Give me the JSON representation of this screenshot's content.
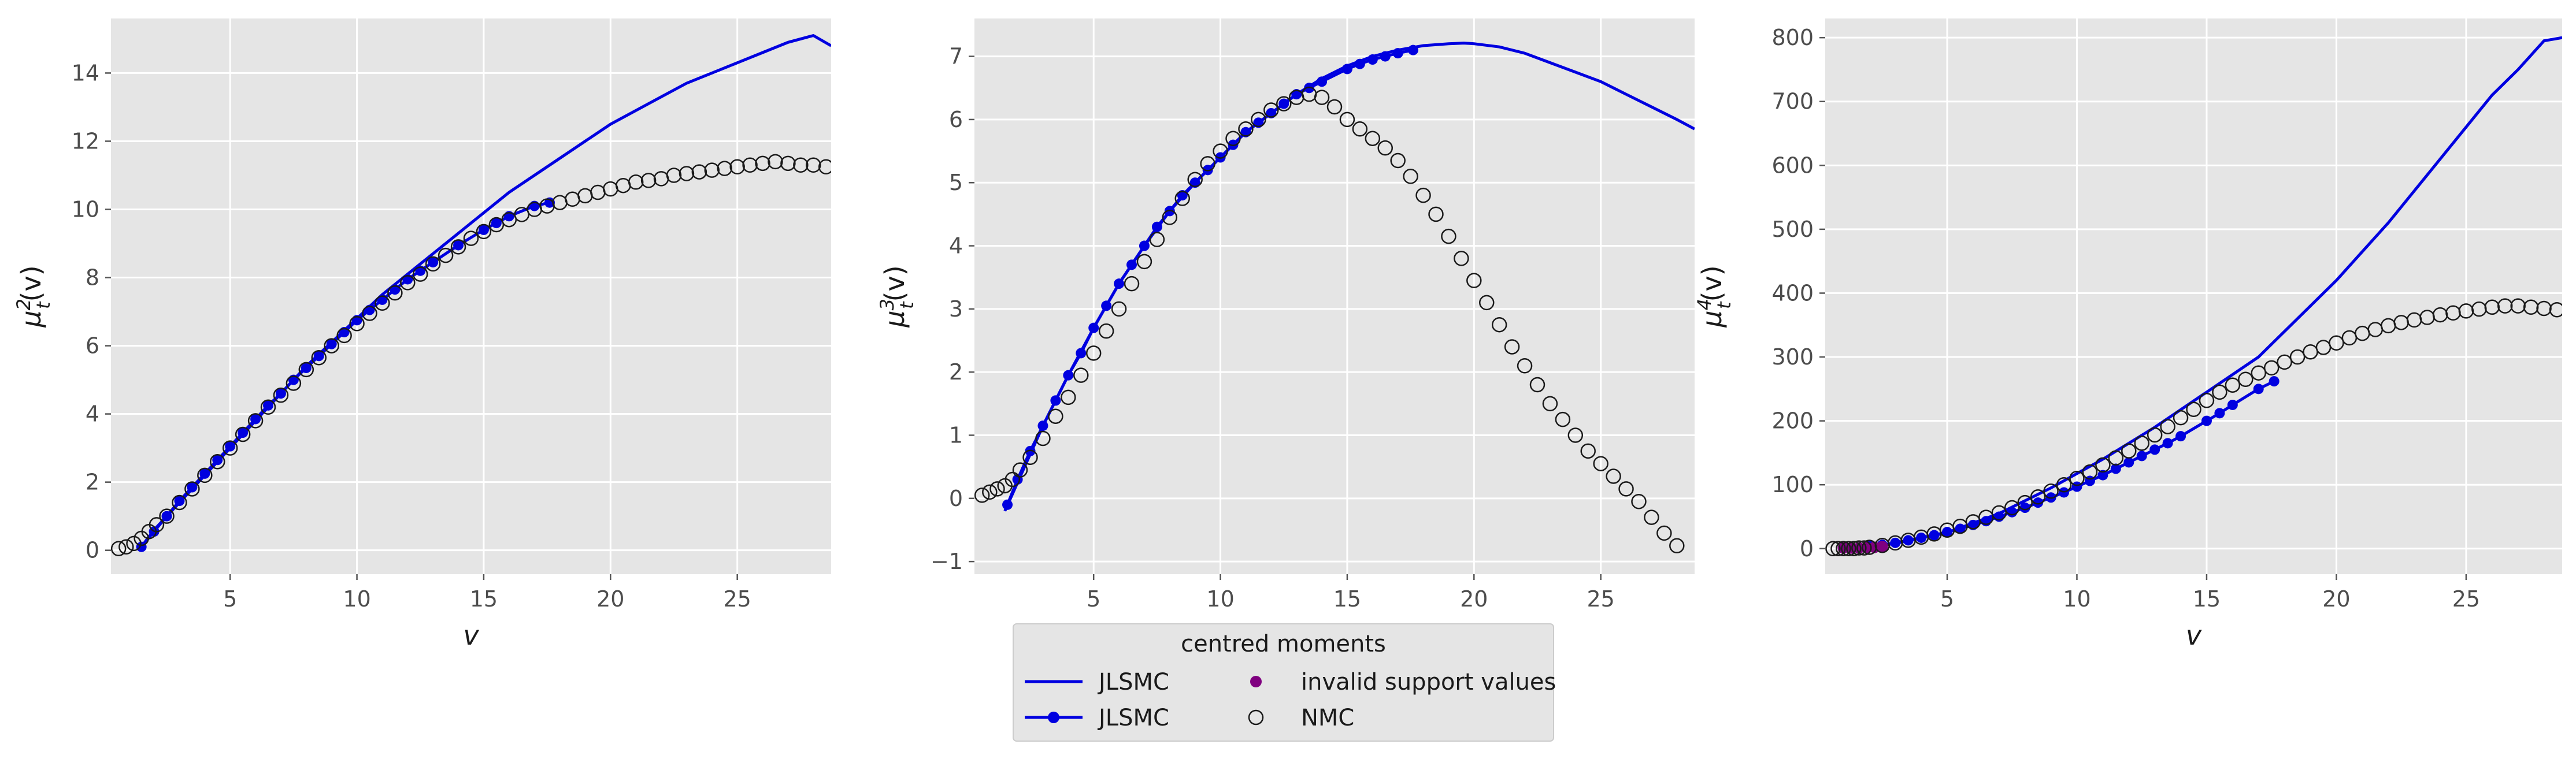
{
  "chart_data": [
    {
      "type": "scatter",
      "panel": 1,
      "xlabel": "v",
      "ylabel": "μ_t^2(v)",
      "ylabel_parts": {
        "base": "μ",
        "sup": "2",
        "sub": "t",
        "tail": "(v)"
      },
      "xlim": [
        0.3,
        28.7
      ],
      "ylim": [
        -0.7,
        15.6
      ],
      "xticks": [
        "5",
        "10",
        "15",
        "20",
        "25"
      ],
      "xtick_values": [
        5,
        10,
        15,
        20,
        25
      ],
      "yticks": [
        "0",
        "2",
        "4",
        "6",
        "8",
        "10",
        "12",
        "14"
      ],
      "ytick_values": [
        0,
        2,
        4,
        6,
        8,
        10,
        12,
        14
      ],
      "grid": true,
      "series": [
        {
          "name": "JLSMC",
          "kind": "line",
          "color": "#0000e0",
          "x": [
            1.5,
            2,
            3,
            4,
            5,
            6,
            7,
            8,
            9,
            10,
            11,
            12,
            13,
            14,
            15,
            16,
            17,
            18,
            19,
            20,
            21,
            22,
            23,
            24,
            25,
            26,
            27,
            28,
            28.7
          ],
          "y": [
            0.1,
            0.6,
            1.4,
            2.2,
            3.0,
            3.8,
            4.6,
            5.4,
            6.1,
            6.8,
            7.5,
            8.1,
            8.7,
            9.3,
            9.9,
            10.5,
            11.0,
            11.5,
            12.0,
            12.5,
            12.9,
            13.3,
            13.7,
            14.0,
            14.3,
            14.6,
            14.9,
            15.1,
            14.8
          ]
        },
        {
          "name": "JLSMC",
          "kind": "line+markers",
          "color": "#0000e0",
          "x": [
            1.5,
            2,
            2.5,
            3,
            3.5,
            4,
            4.5,
            5,
            5.5,
            6,
            6.5,
            7,
            7.5,
            8,
            8.5,
            9,
            9.5,
            10,
            10.5,
            11,
            11.5,
            12,
            12.5,
            13,
            14,
            15,
            15.5,
            16,
            17,
            17.6
          ],
          "y": [
            0.1,
            0.55,
            1.0,
            1.45,
            1.85,
            2.25,
            2.65,
            3.05,
            3.45,
            3.85,
            4.25,
            4.6,
            5.0,
            5.35,
            5.7,
            6.05,
            6.4,
            6.75,
            7.05,
            7.35,
            7.65,
            7.95,
            8.2,
            8.45,
            8.95,
            9.4,
            9.6,
            9.8,
            10.1,
            10.2
          ]
        },
        {
          "name": "NMC",
          "kind": "scatter-open",
          "color": "#1a1a1a",
          "x": [
            0.6,
            0.9,
            1.2,
            1.5,
            1.8,
            2.1,
            2.5,
            3,
            3.5,
            4,
            4.5,
            5,
            5.5,
            6,
            6.5,
            7,
            7.5,
            8,
            8.5,
            9,
            9.5,
            10,
            10.5,
            11,
            11.5,
            12,
            12.5,
            13,
            13.5,
            14,
            14.5,
            15,
            15.5,
            16,
            16.5,
            17,
            17.5,
            18,
            18.5,
            19,
            19.5,
            20,
            20.5,
            21,
            21.5,
            22,
            22.5,
            23,
            23.5,
            24,
            24.5,
            25,
            25.5,
            26,
            26.5,
            27,
            27.5,
            28,
            28.5
          ],
          "y": [
            0.05,
            0.1,
            0.2,
            0.35,
            0.55,
            0.75,
            1.0,
            1.4,
            1.8,
            2.2,
            2.6,
            3.0,
            3.4,
            3.8,
            4.2,
            4.55,
            4.9,
            5.3,
            5.65,
            6.0,
            6.3,
            6.65,
            6.95,
            7.25,
            7.55,
            7.85,
            8.1,
            8.4,
            8.65,
            8.9,
            9.15,
            9.35,
            9.55,
            9.7,
            9.85,
            10.0,
            10.1,
            10.2,
            10.3,
            10.4,
            10.5,
            10.6,
            10.7,
            10.8,
            10.85,
            10.9,
            11.0,
            11.05,
            11.1,
            11.15,
            11.2,
            11.25,
            11.3,
            11.35,
            11.4,
            11.35,
            11.3,
            11.3,
            11.25
          ]
        }
      ]
    },
    {
      "type": "scatter",
      "panel": 2,
      "xlabel": "v",
      "ylabel": "μ_t^3(v)",
      "ylabel_parts": {
        "base": "μ",
        "sup": "3",
        "sub": "t",
        "tail": "(v)"
      },
      "xlim": [
        0.3,
        28.7
      ],
      "ylim": [
        -1.2,
        7.6
      ],
      "xticks": [
        "5",
        "10",
        "15",
        "20",
        "25"
      ],
      "xtick_values": [
        5,
        10,
        15,
        20,
        25
      ],
      "yticks": [
        "−1",
        "0",
        "1",
        "2",
        "3",
        "4",
        "5",
        "6",
        "7"
      ],
      "ytick_values": [
        -1,
        0,
        1,
        2,
        3,
        4,
        5,
        6,
        7
      ],
      "grid": true,
      "series": [
        {
          "name": "JLSMC",
          "kind": "line",
          "color": "#0000e0",
          "x": [
            1.5,
            2,
            2.5,
            3,
            3.5,
            4,
            5,
            6,
            7,
            8,
            9,
            10,
            11,
            12,
            13,
            14,
            15,
            16,
            17,
            18,
            19,
            19.6,
            20,
            21,
            22,
            23,
            24,
            25,
            26,
            27,
            28,
            28.7
          ],
          "y": [
            -0.2,
            0.25,
            0.7,
            1.15,
            1.55,
            1.95,
            2.7,
            3.4,
            4.0,
            4.55,
            5.0,
            5.4,
            5.8,
            6.1,
            6.4,
            6.65,
            6.85,
            7.0,
            7.1,
            7.17,
            7.2,
            7.21,
            7.2,
            7.15,
            7.05,
            6.9,
            6.75,
            6.6,
            6.4,
            6.2,
            6.0,
            5.85
          ]
        },
        {
          "name": "JLSMC",
          "kind": "line+markers",
          "color": "#0000e0",
          "x": [
            1.6,
            2,
            2.5,
            3,
            3.5,
            4,
            4.5,
            5,
            5.5,
            6,
            6.5,
            7,
            7.5,
            8,
            8.5,
            9,
            9.5,
            10,
            10.5,
            11,
            11.5,
            12,
            12.5,
            13,
            13.5,
            14,
            15,
            15.5,
            16,
            16.5,
            17,
            17.6
          ],
          "y": [
            -0.1,
            0.3,
            0.75,
            1.15,
            1.55,
            1.95,
            2.3,
            2.7,
            3.05,
            3.4,
            3.7,
            4.0,
            4.3,
            4.55,
            4.8,
            5.0,
            5.2,
            5.4,
            5.6,
            5.8,
            5.95,
            6.1,
            6.25,
            6.4,
            6.5,
            6.6,
            6.8,
            6.88,
            6.95,
            7.0,
            7.05,
            7.1
          ]
        },
        {
          "name": "NMC",
          "kind": "scatter-open",
          "color": "#1a1a1a",
          "x": [
            0.6,
            0.9,
            1.2,
            1.5,
            1.8,
            2.1,
            2.5,
            3,
            3.5,
            4,
            4.5,
            5,
            5.5,
            6,
            6.5,
            7,
            7.5,
            8,
            8.5,
            9,
            9.5,
            10,
            10.5,
            11,
            11.5,
            12,
            12.5,
            13,
            13.5,
            14,
            14.5,
            15,
            15.5,
            16,
            16.5,
            17,
            17.5,
            18,
            18.5,
            19,
            19.5,
            20,
            20.5,
            21,
            21.5,
            22,
            22.5,
            23,
            23.5,
            24,
            24.5,
            25,
            25.5,
            26,
            26.5,
            27,
            27.5,
            28
          ],
          "y": [
            0.05,
            0.1,
            0.15,
            0.2,
            0.3,
            0.45,
            0.65,
            0.95,
            1.3,
            1.6,
            1.95,
            2.3,
            2.65,
            3.0,
            3.4,
            3.75,
            4.1,
            4.45,
            4.75,
            5.05,
            5.3,
            5.5,
            5.7,
            5.85,
            6.0,
            6.15,
            6.25,
            6.35,
            6.4,
            6.35,
            6.2,
            6.0,
            5.85,
            5.7,
            5.55,
            5.35,
            5.1,
            4.8,
            4.5,
            4.15,
            3.8,
            3.45,
            3.1,
            2.75,
            2.4,
            2.1,
            1.8,
            1.5,
            1.25,
            1.0,
            0.75,
            0.55,
            0.35,
            0.15,
            -0.05,
            -0.3,
            -0.55,
            -0.75
          ]
        }
      ]
    },
    {
      "type": "scatter",
      "panel": 3,
      "xlabel": "v",
      "ylabel": "μ_t^4(v)",
      "ylabel_parts": {
        "base": "μ",
        "sup": "4",
        "sub": "t",
        "tail": "(v)"
      },
      "xlim": [
        0.3,
        28.7
      ],
      "ylim": [
        -40,
        830
      ],
      "xticks": [
        "5",
        "10",
        "15",
        "20",
        "25"
      ],
      "xtick_values": [
        5,
        10,
        15,
        20,
        25
      ],
      "yticks": [
        "0",
        "100",
        "200",
        "300",
        "400",
        "500",
        "600",
        "700",
        "800"
      ],
      "ytick_values": [
        0,
        100,
        200,
        300,
        400,
        500,
        600,
        700,
        800
      ],
      "grid": true,
      "series": [
        {
          "name": "JLSMC",
          "kind": "line",
          "color": "#0000e0",
          "x": [
            1.5,
            3,
            5,
            7,
            9,
            11,
            13,
            15,
            17,
            18,
            19,
            20,
            21,
            22,
            23,
            24,
            25,
            26,
            27,
            28,
            28.7
          ],
          "y": [
            0,
            8,
            25,
            55,
            95,
            140,
            190,
            245,
            300,
            340,
            380,
            420,
            465,
            510,
            560,
            610,
            660,
            710,
            750,
            795,
            800
          ]
        },
        {
          "name": "JLSMC",
          "kind": "line+markers",
          "color": "#0000e0",
          "x": [
            1.6,
            2,
            2.5,
            3,
            3.5,
            4,
            4.5,
            5,
            5.5,
            6,
            6.5,
            7,
            7.5,
            8,
            8.5,
            9,
            9.5,
            10,
            10.5,
            11,
            11.5,
            12,
            12.5,
            13,
            13.5,
            14,
            15,
            15.5,
            16,
            17,
            17.6
          ],
          "y": [
            2,
            4,
            6,
            9,
            13,
            17,
            21,
            26,
            31,
            37,
            43,
            50,
            57,
            64,
            72,
            80,
            88,
            97,
            106,
            115,
            125,
            135,
            145,
            155,
            165,
            176,
            200,
            212,
            225,
            250,
            262
          ]
        },
        {
          "name": "invalid support values",
          "kind": "scatter-filled",
          "color": "#800080",
          "x": [
            1.0,
            1.3,
            1.6,
            1.9,
            2.2,
            2.5
          ],
          "y": [
            1,
            1,
            1,
            2,
            2,
            3
          ]
        },
        {
          "name": "NMC",
          "kind": "scatter-open",
          "color": "#1a1a1a",
          "x": [
            0.6,
            0.8,
            1.0,
            1.2,
            1.4,
            1.6,
            1.8,
            2.0,
            2.5,
            3,
            3.5,
            4,
            4.5,
            5,
            5.5,
            6,
            6.5,
            7,
            7.5,
            8,
            8.5,
            9,
            9.5,
            10,
            10.5,
            11,
            11.5,
            12,
            12.5,
            13,
            13.5,
            14,
            14.5,
            15,
            15.5,
            16,
            16.5,
            17,
            17.5,
            18,
            18.5,
            19,
            19.5,
            20,
            20.5,
            21,
            21.5,
            22,
            22.5,
            23,
            23.5,
            24,
            24.5,
            25,
            25.5,
            26,
            26.5,
            27,
            27.5,
            28,
            28.5
          ],
          "y": [
            0,
            0,
            0,
            0,
            0,
            1,
            1,
            2,
            5,
            9,
            13,
            18,
            23,
            29,
            35,
            42,
            49,
            56,
            64,
            72,
            81,
            90,
            100,
            110,
            120,
            131,
            142,
            153,
            165,
            178,
            191,
            205,
            218,
            232,
            245,
            256,
            265,
            275,
            283,
            292,
            300,
            308,
            315,
            322,
            330,
            337,
            343,
            349,
            354,
            358,
            362,
            366,
            369,
            372,
            375,
            378,
            380,
            380,
            378,
            376,
            374
          ]
        }
      ]
    }
  ],
  "legend": {
    "title": "centred moments",
    "placement": "bottom-center",
    "entries": [
      {
        "label": "JLSMC",
        "kind": "line",
        "color": "#0000e0"
      },
      {
        "label": "JLSMC",
        "kind": "line+markers",
        "color": "#0000e0"
      },
      {
        "label": "invalid support values",
        "kind": "scatter-filled",
        "color": "#800080"
      },
      {
        "label": "NMC",
        "kind": "scatter-open",
        "color": "#1a1a1a"
      }
    ]
  },
  "colors": {
    "axes_bg": "#e5e5e5",
    "grid": "#ffffff",
    "jlsmc": "#0000e0",
    "invalid": "#800080",
    "nmc_edge": "#1a1a1a"
  }
}
